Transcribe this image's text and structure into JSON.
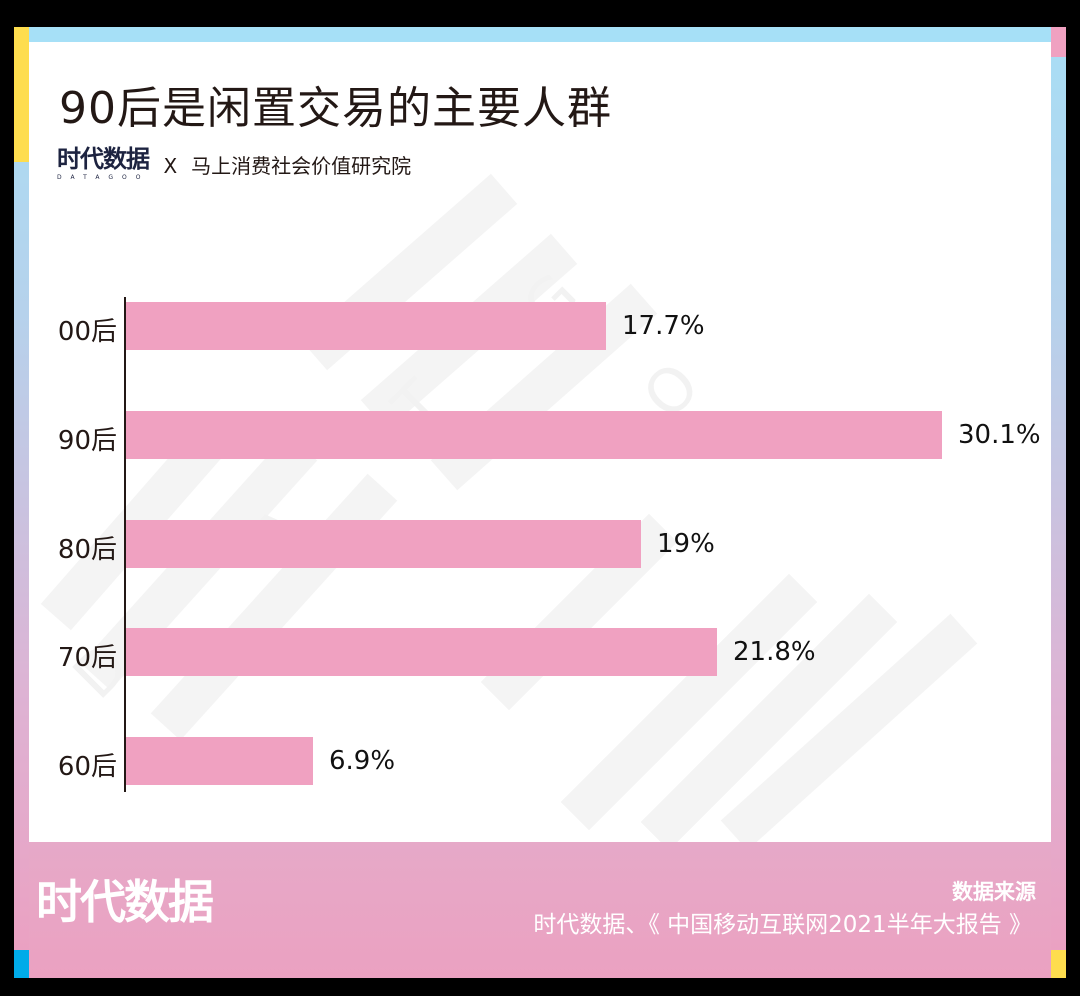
{
  "header": {
    "title": "90后是闲置交易的主要人群",
    "logo_text": "时代数据",
    "logo_sub": "DATAGOO",
    "collab_separator": "X",
    "partner": "马上消费社会价值研究院"
  },
  "footer": {
    "logo_text": "时代数据",
    "source_title": "数据来源",
    "source_text": "时代数据、《 中国移动互联网2021半年大报告 》"
  },
  "colors": {
    "bar": "#f0a1c1",
    "frame_top": "#a6e0f7",
    "frame_bottom": "#eba1c1",
    "accent_yellow": "#fedd4e",
    "accent_blue": "#00abe9",
    "text": "#231815"
  },
  "chart_data": {
    "type": "bar",
    "orientation": "horizontal",
    "title": "90后是闲置交易的主要人群",
    "categories": [
      "00后",
      "90后",
      "80后",
      "70后",
      "60后"
    ],
    "values": [
      17.7,
      30.1,
      19,
      21.8,
      6.9
    ],
    "value_labels": [
      "17.7%",
      "30.1%",
      "19%",
      "21.8%",
      "6.9%"
    ],
    "xlabel": "",
    "ylabel": "",
    "unit": "%",
    "grid": false,
    "legend": null,
    "source": "时代数据、《中国移动互联网2021半年大报告》"
  }
}
